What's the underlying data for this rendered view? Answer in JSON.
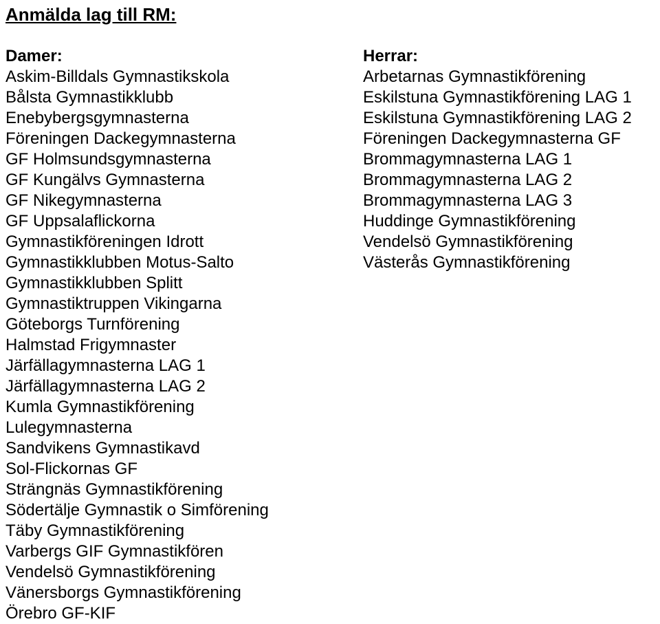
{
  "title": "Anmälda lag till RM:",
  "left": {
    "heading": "Damer:",
    "items": [
      "Askim-Billdals Gymnastikskola",
      "Bålsta Gymnastikklubb",
      "Enebybergsgymnasterna",
      "Föreningen Dackegymnasterna",
      "GF Holmsundsgymnasterna",
      "GF Kungälvs Gymnasterna",
      "GF Nikegymnasterna",
      "GF Uppsalaflickorna",
      "Gymnastikföreningen Idrott",
      "Gymnastikklubben Motus-Salto",
      "Gymnastikklubben Splitt",
      "Gymnastiktruppen Vikingarna",
      "Göteborgs Turnförening",
      "Halmstad Frigymnaster",
      "Järfällagymnasterna LAG 1",
      "Järfällagymnasterna LAG 2",
      "Kumla Gymnastikförening",
      "Lulegymnasterna",
      "Sandvikens Gymnastikavd",
      "Sol-Flickornas GF",
      "Strängnäs Gymnastikförening",
      "Södertälje Gymnastik o Simförening",
      "Täby Gymnastikförening",
      "Varbergs GIF Gymnastikfören",
      "Vendelsö Gymnastikförening",
      "Vänersborgs Gymnastikförening",
      "Örebro GF-KIF"
    ]
  },
  "right": {
    "heading": "Herrar:",
    "items": [
      "Arbetarnas Gymnastikförening",
      "Eskilstuna Gymnastikförening LAG 1",
      "Eskilstuna Gymnastikförening LAG 2",
      "Föreningen Dackegymnasterna GF",
      "Brommagymnasterna LAG 1",
      "Brommagymnasterna LAG 2",
      "Brommagymnasterna LAG 3",
      "Huddinge Gymnastikförening",
      "Vendelsö Gymnastikförening",
      "Västerås Gymnastikförening"
    ]
  }
}
